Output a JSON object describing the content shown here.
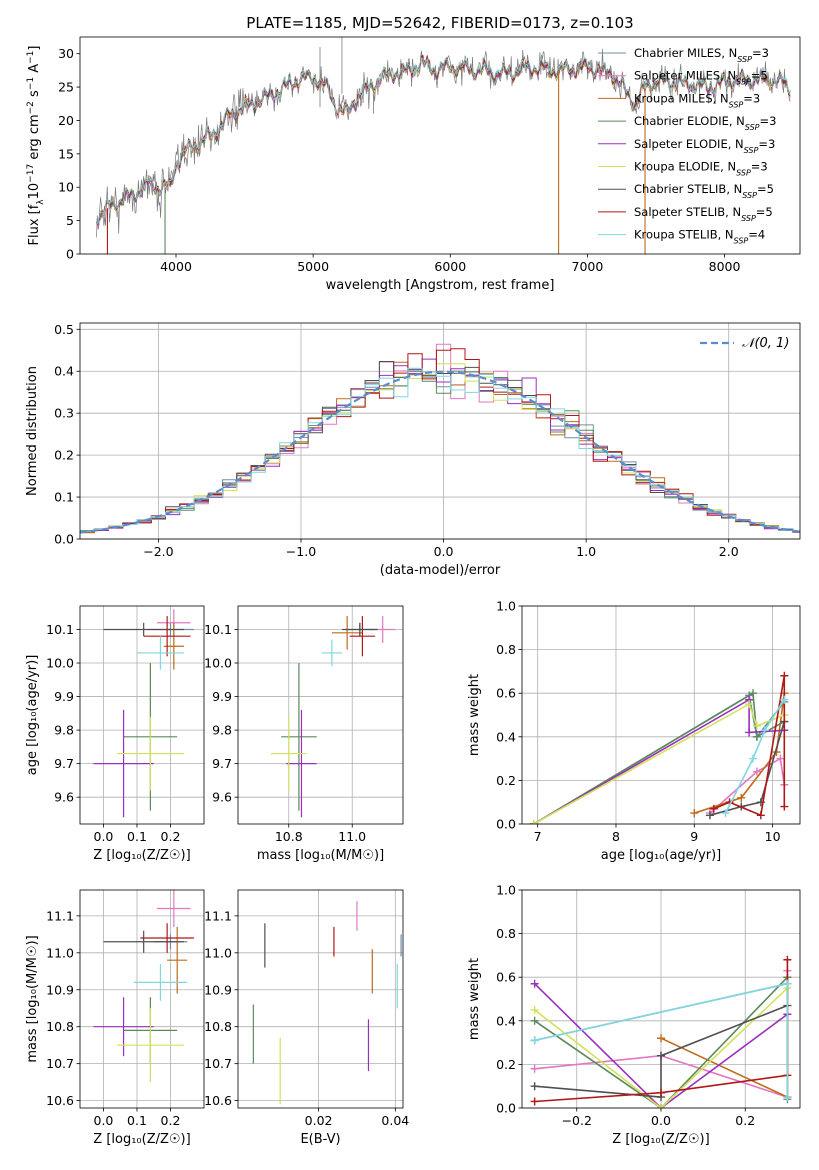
{
  "figure_title": "PLATE=1185, MJD=52642, FIBERID=0173, z=0.103",
  "colors": {
    "Chabrier MILES": "#6f8fa7",
    "Salpeter MILES": "#e377c2",
    "Kroupa MILES": "#c06a1a",
    "Chabrier ELODIE": "#5a8a5a",
    "Salpeter ELODIE": "#9b30c0",
    "Kroupa ELODIE": "#d4e05a",
    "Chabrier STELIB": "#505050",
    "Salpeter STELIB": "#b01818",
    "Kroupa STELIB": "#7fd8e0",
    "gaussian": "#5b8bd0"
  },
  "chart_data": [
    {
      "type": "line",
      "title": "PLATE=1185, MJD=52642, FIBERID=0173, z=0.103",
      "xlabel": "wavelength [Angstrom, rest frame]",
      "ylabel_parts": [
        "Flux [f",
        "λ",
        "10",
        "−17",
        " erg cm",
        "−2",
        " s",
        "−1",
        " A",
        "−1",
        "]"
      ],
      "xlim": [
        3300,
        8550
      ],
      "ylim": [
        0,
        32.5
      ],
      "xticks": [
        4000,
        5000,
        6000,
        7000,
        8000
      ],
      "yticks": [
        0,
        5,
        10,
        15,
        20,
        25,
        30
      ],
      "legend_position": "right",
      "legend": [
        {
          "model": "Chabrier MILES",
          "label": "Chabrier MILES, N",
          "sub": "SSP",
          "tail": "=3"
        },
        {
          "model": "Salpeter MILES",
          "label": "Salpeter MILES, N",
          "sub": "SSP",
          "tail": "=5"
        },
        {
          "model": "Kroupa MILES",
          "label": "Kroupa MILES, N",
          "sub": "SSP",
          "tail": "=3"
        },
        {
          "model": "Chabrier ELODIE",
          "label": "Chabrier ELODIE, N",
          "sub": "SSP",
          "tail": "=3"
        },
        {
          "model": "Salpeter ELODIE",
          "label": "Salpeter ELODIE, N",
          "sub": "SSP",
          "tail": "=3"
        },
        {
          "model": "Kroupa ELODIE",
          "label": "Kroupa ELODIE, N",
          "sub": "SSP",
          "tail": "=3"
        },
        {
          "model": "Chabrier STELIB",
          "label": "Chabrier STELIB, N",
          "sub": "SSP",
          "tail": "=5"
        },
        {
          "model": "Salpeter STELIB",
          "label": "Salpeter STELIB, N",
          "sub": "SSP",
          "tail": "=5"
        },
        {
          "model": "Kroupa STELIB",
          "label": "Kroupa STELIB, N",
          "sub": "SSP",
          "tail": "=4"
        }
      ],
      "continuum_knots": [
        [
          3420,
          5.5
        ],
        [
          3520,
          7.2
        ],
        [
          3600,
          8.0
        ],
        [
          3700,
          9.0
        ],
        [
          3800,
          10.5
        ],
        [
          3880,
          10.0
        ],
        [
          3960,
          10.0
        ],
        [
          4000,
          13.5
        ],
        [
          4100,
          16.0
        ],
        [
          4200,
          17.0
        ],
        [
          4300,
          18.5
        ],
        [
          4400,
          21.0
        ],
        [
          4600,
          22.8
        ],
        [
          4800,
          25.0
        ],
        [
          4900,
          26.2
        ],
        [
          5000,
          26.5
        ],
        [
          5100,
          25.0
        ],
        [
          5170,
          22.0
        ],
        [
          5250,
          21.0
        ],
        [
          5300,
          23.0
        ],
        [
          5500,
          26.5
        ],
        [
          5700,
          27.5
        ],
        [
          5800,
          28.5
        ],
        [
          5900,
          27.5
        ],
        [
          6000,
          28.0
        ],
        [
          6200,
          27.5
        ],
        [
          6400,
          27.0
        ],
        [
          6600,
          28.0
        ],
        [
          6800,
          27.5
        ],
        [
          7000,
          28.0
        ],
        [
          7150,
          27.0
        ],
        [
          7200,
          26.5
        ],
        [
          7300,
          23.8
        ],
        [
          7350,
          22.5
        ],
        [
          7400,
          24.5
        ],
        [
          7500,
          26.0
        ],
        [
          7700,
          25.5
        ],
        [
          7900,
          25.0
        ],
        [
          8000,
          25.8
        ],
        [
          8200,
          26.2
        ],
        [
          8400,
          26.0
        ],
        [
          8480,
          24.5
        ]
      ],
      "observed_spikes": [
        {
          "x": 5050,
          "y": 31.0,
          "low": 22.0
        },
        {
          "x": 5210,
          "y": 32.5,
          "low": 24.0
        },
        {
          "x": 5440,
          "y": 24.0,
          "low": 21.0
        }
      ],
      "model_dropouts": [
        {
          "x": 3500,
          "model": "Salpeter STELIB"
        },
        {
          "x": 3920,
          "model": "Chabrier ELODIE"
        },
        {
          "x": 6790,
          "model": "Kroupa MILES"
        },
        {
          "x": 7420,
          "model": "Kroupa MILES"
        }
      ]
    },
    {
      "type": "histogram",
      "xlabel": "(data-model)/error",
      "ylabel": "Normed distribution",
      "xlim": [
        -2.55,
        2.5
      ],
      "ylim": [
        0,
        0.515
      ],
      "xticks": [
        -2,
        -1,
        0,
        1,
        2
      ],
      "yticks": [
        0.0,
        0.1,
        0.2,
        0.3,
        0.4,
        0.5
      ],
      "legend_position": "top-right",
      "legend": [
        {
          "label": "𝒩(0, 1)",
          "style": "dashed"
        }
      ],
      "gaussian": {
        "mean": 0,
        "sigma": 1
      }
    },
    {
      "type": "scatter",
      "xlabel": "Z [log₁₀(Z/Z☉)]",
      "ylabel": "age  [log₁₀(age/yr)]",
      "xlim": [
        -0.07,
        0.3
      ],
      "ylim": [
        9.52,
        10.17
      ],
      "xticks": [
        0.0,
        0.1,
        0.2
      ],
      "yticks": [
        9.6,
        9.7,
        9.8,
        9.9,
        10.0,
        10.1
      ],
      "errorbars": [
        {
          "model": "Chabrier MILES",
          "x": 0.2,
          "xerr": 0.07,
          "y": 10.1,
          "yerr": 0.02
        },
        {
          "model": "Salpeter MILES",
          "x": 0.21,
          "xerr": 0.05,
          "y": 10.12,
          "yerr": 0.04
        },
        {
          "model": "Kroupa MILES",
          "x": 0.21,
          "xerr": 0.03,
          "y": 10.05,
          "yerr": 0.07
        },
        {
          "model": "Chabrier ELODIE",
          "x": 0.14,
          "xerr": 0.08,
          "y": 9.78,
          "yerr": 0.22
        },
        {
          "model": "Salpeter ELODIE",
          "x": 0.06,
          "xerr": 0.09,
          "y": 9.7,
          "yerr": 0.16
        },
        {
          "model": "Kroupa ELODIE",
          "x": 0.14,
          "xerr": 0.1,
          "y": 9.73,
          "yerr": 0.11
        },
        {
          "model": "Chabrier STELIB",
          "x": 0.12,
          "xerr": 0.12,
          "y": 10.1,
          "yerr": 0.02
        },
        {
          "model": "Salpeter STELIB",
          "x": 0.19,
          "xerr": 0.07,
          "y": 10.08,
          "yerr": 0.06
        },
        {
          "model": "Kroupa STELIB",
          "x": 0.17,
          "xerr": 0.07,
          "y": 10.03,
          "yerr": 0.05
        }
      ]
    },
    {
      "type": "scatter",
      "xlabel": "mass [log₁₀(M/M☉)]",
      "xlim": [
        10.55,
        11.2
      ],
      "ylim": [
        9.52,
        10.17
      ],
      "xticks": [
        10.75,
        11.0
      ],
      "yticks": [
        9.6,
        9.7,
        9.8,
        9.9,
        10.0,
        10.1
      ],
      "errorbars": [
        {
          "model": "Chabrier MILES",
          "x": 11.03,
          "xerr": 0.05,
          "y": 10.1,
          "yerr": 0.02
        },
        {
          "model": "Salpeter MILES",
          "x": 11.12,
          "xerr": 0.05,
          "y": 10.1,
          "yerr": 0.04
        },
        {
          "model": "Kroupa MILES",
          "x": 10.98,
          "xerr": 0.06,
          "y": 10.09,
          "yerr": 0.05
        },
        {
          "model": "Chabrier ELODIE",
          "x": 10.79,
          "xerr": 0.07,
          "y": 9.78,
          "yerr": 0.22
        },
        {
          "model": "Salpeter ELODIE",
          "x": 10.8,
          "xerr": 0.06,
          "y": 9.7,
          "yerr": 0.16
        },
        {
          "model": "Kroupa ELODIE",
          "x": 10.75,
          "xerr": 0.07,
          "y": 9.73,
          "yerr": 0.11
        },
        {
          "model": "Chabrier STELIB",
          "x": 11.03,
          "xerr": 0.07,
          "y": 10.1,
          "yerr": 0.02
        },
        {
          "model": "Salpeter STELIB",
          "x": 11.04,
          "xerr": 0.05,
          "y": 10.08,
          "yerr": 0.06
        },
        {
          "model": "Kroupa STELIB",
          "x": 10.92,
          "xerr": 0.04,
          "y": 10.03,
          "yerr": 0.04
        }
      ]
    },
    {
      "type": "line",
      "xlabel": "age  [log₁₀(age/yr)]",
      "ylabel": "mass weight",
      "xlim": [
        6.8,
        10.35
      ],
      "ylim": [
        0,
        1.0
      ],
      "xticks": [
        7,
        8,
        9,
        10
      ],
      "yticks": [
        0.0,
        0.2,
        0.4,
        0.6,
        0.8,
        1.0
      ],
      "series": [
        {
          "model": "Chabrier MILES",
          "x": [
            6.95,
            9.7,
            9.8,
            10.15
          ],
          "y": [
            0.0,
            0.59,
            0.4,
            0.56
          ]
        },
        {
          "model": "Salpeter MILES",
          "x": [
            9.2,
            9.8,
            10.1,
            10.15
          ],
          "y": [
            0.05,
            0.24,
            0.3,
            0.18
          ]
        },
        {
          "model": "Kroupa MILES",
          "x": [
            9.0,
            9.6,
            10.05,
            10.15
          ],
          "y": [
            0.05,
            0.12,
            0.33,
            0.6
          ]
        },
        {
          "model": "Chabrier ELODIE",
          "x": [
            6.95,
            9.75,
            9.8,
            10.15
          ],
          "y": [
            0.0,
            0.6,
            0.4,
            0.47
          ]
        },
        {
          "model": "Salpeter ELODIE",
          "x": [
            6.95,
            9.7,
            9.7,
            10.15
          ],
          "y": [
            0.0,
            0.57,
            0.42,
            0.43
          ]
        },
        {
          "model": "Kroupa ELODIE",
          "x": [
            6.95,
            9.7,
            9.8,
            10.15
          ],
          "y": [
            0.0,
            0.55,
            0.45,
            0.5
          ]
        },
        {
          "model": "Chabrier STELIB",
          "x": [
            9.2,
            9.6,
            9.85,
            10.15
          ],
          "y": [
            0.04,
            0.08,
            0.1,
            0.47
          ]
        },
        {
          "model": "Salpeter STELIB",
          "x": [
            9.25,
            9.45,
            9.85,
            10.15,
            10.15
          ],
          "y": [
            0.07,
            0.1,
            0.04,
            0.68,
            0.08
          ]
        },
        {
          "model": "Kroupa STELIB",
          "x": [
            9.4,
            9.75,
            9.9,
            10.15
          ],
          "y": [
            0.05,
            0.3,
            0.43,
            0.57
          ]
        }
      ]
    },
    {
      "type": "scatter",
      "xlabel": "Z [log₁₀(Z/Z☉)]",
      "ylabel": "mass [log₁₀(M/M☉)]",
      "xlim": [
        -0.07,
        0.3
      ],
      "ylim": [
        10.58,
        11.17
      ],
      "xticks": [
        0.0,
        0.1,
        0.2
      ],
      "yticks": [
        10.6,
        10.7,
        10.8,
        10.9,
        11.0,
        11.1
      ],
      "errorbars": [
        {
          "model": "Chabrier MILES",
          "x": 0.2,
          "xerr": 0.05,
          "y": 11.03,
          "yerr": 0.02
        },
        {
          "model": "Salpeter MILES",
          "x": 0.21,
          "xerr": 0.05,
          "y": 11.12,
          "yerr": 0.05
        },
        {
          "model": "Kroupa MILES",
          "x": 0.22,
          "xerr": 0.03,
          "y": 10.98,
          "yerr": 0.09
        },
        {
          "model": "Chabrier ELODIE",
          "x": 0.14,
          "xerr": 0.08,
          "y": 10.79,
          "yerr": 0.09
        },
        {
          "model": "Salpeter ELODIE",
          "x": 0.06,
          "xerr": 0.09,
          "y": 10.8,
          "yerr": 0.08
        },
        {
          "model": "Kroupa ELODIE",
          "x": 0.14,
          "xerr": 0.1,
          "y": 10.75,
          "yerr": 0.1
        },
        {
          "model": "Chabrier STELIB",
          "x": 0.12,
          "xerr": 0.12,
          "y": 11.03,
          "yerr": 0.03
        },
        {
          "model": "Salpeter STELIB",
          "x": 0.19,
          "xerr": 0.08,
          "y": 11.04,
          "yerr": 0.04
        },
        {
          "model": "Kroupa STELIB",
          "x": 0.17,
          "xerr": 0.08,
          "y": 10.92,
          "yerr": 0.05
        }
      ]
    },
    {
      "type": "scatter",
      "xlabel": "E(B-V)",
      "xlim": [
        -0.001,
        0.042
      ],
      "ylim": [
        10.58,
        11.17
      ],
      "xticks": [
        0.02,
        0.04
      ],
      "yticks": [
        10.6,
        10.7,
        10.8,
        10.9,
        11.0,
        11.1
      ],
      "errorbars": [
        {
          "model": "Chabrier MILES",
          "x": 0.0415,
          "xerr": 0,
          "y": 11.02,
          "yerr": 0.03
        },
        {
          "model": "Salpeter MILES",
          "x": 0.03,
          "xerr": 0,
          "y": 11.1,
          "yerr": 0.04
        },
        {
          "model": "Kroupa MILES",
          "x": 0.034,
          "xerr": 0,
          "y": 10.95,
          "yerr": 0.06
        },
        {
          "model": "Chabrier ELODIE",
          "x": 0.003,
          "xerr": 0,
          "y": 10.78,
          "yerr": 0.08
        },
        {
          "model": "Salpeter ELODIE",
          "x": 0.033,
          "xerr": 0,
          "y": 10.75,
          "yerr": 0.07
        },
        {
          "model": "Kroupa ELODIE",
          "x": 0.01,
          "xerr": 0,
          "y": 10.68,
          "yerr": 0.09
        },
        {
          "model": "Chabrier STELIB",
          "x": 0.006,
          "xerr": 0,
          "y": 11.02,
          "yerr": 0.06
        },
        {
          "model": "Salpeter STELIB",
          "x": 0.024,
          "xerr": 0,
          "y": 11.03,
          "yerr": 0.04
        },
        {
          "model": "Kroupa STELIB",
          "x": 0.0405,
          "xerr": 0,
          "y": 10.91,
          "yerr": 0.06
        }
      ]
    },
    {
      "type": "line",
      "xlabel": "Z [log₁₀(Z/Z☉)]",
      "ylabel": "mass weight",
      "xlim": [
        -0.33,
        0.33
      ],
      "ylim": [
        0,
        1.0
      ],
      "xticks": [
        -0.2,
        0.0,
        0.2
      ],
      "yticks": [
        0.0,
        0.2,
        0.4,
        0.6,
        0.8,
        1.0
      ],
      "series": [
        {
          "model": "Chabrier MILES",
          "x": [
            -0.3,
            0.3,
            0.3
          ],
          "y": [
            0.31,
            0.57,
            0.04
          ]
        },
        {
          "model": "Salpeter MILES",
          "x": [
            -0.3,
            0.0,
            0.3,
            0.3
          ],
          "y": [
            0.18,
            0.24,
            0.05,
            0.63
          ]
        },
        {
          "model": "Kroupa MILES",
          "x": [
            0.0,
            0.3,
            0.3
          ],
          "y": [
            0.32,
            0.05,
            0.6
          ]
        },
        {
          "model": "Chabrier ELODIE",
          "x": [
            -0.3,
            0.0,
            0.3
          ],
          "y": [
            0.4,
            0.0,
            0.6
          ]
        },
        {
          "model": "Salpeter ELODIE",
          "x": [
            -0.3,
            0.0,
            0.3
          ],
          "y": [
            0.57,
            0.0,
            0.43
          ]
        },
        {
          "model": "Kroupa ELODIE",
          "x": [
            -0.3,
            0.0,
            0.3
          ],
          "y": [
            0.45,
            0.0,
            0.55
          ]
        },
        {
          "model": "Chabrier STELIB",
          "x": [
            -0.3,
            0.0,
            0.0,
            0.3
          ],
          "y": [
            0.1,
            0.05,
            0.24,
            0.47
          ]
        },
        {
          "model": "Salpeter STELIB",
          "x": [
            -0.3,
            0.0,
            0.3,
            0.3
          ],
          "y": [
            0.03,
            0.07,
            0.15,
            0.68
          ]
        },
        {
          "model": "Kroupa STELIB",
          "x": [
            -0.3,
            0.3,
            0.3
          ],
          "y": [
            0.31,
            0.57,
            0.05
          ]
        }
      ]
    }
  ]
}
